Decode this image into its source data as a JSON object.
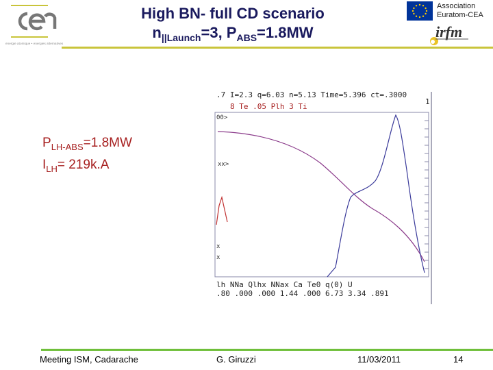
{
  "header": {
    "title_line1": "High BN- full CD scenario",
    "title_line2_main": "n",
    "title_line2_sub1": "||Launch",
    "title_line2_mid": "=3, P",
    "title_line2_sub2": "ABS",
    "title_line2_end": "=1.8MW",
    "association_line1": "Association",
    "association_line2": "Euratom-CEA",
    "logo_left": "cea",
    "logo_left_tagline": "energie atomique • energies alternatives",
    "logo_right": "irfm"
  },
  "annotation": {
    "plh_main": "P",
    "plh_sub": "LH-ABS",
    "plh_value": "=1.8MW",
    "ilh_main": "I",
    "ilh_sub": "LH",
    "ilh_value": "= 219k.A"
  },
  "plot": {
    "top_row1": ".7  I=2.3  q=6.03 n=5.13 Time=5.396 ct=.3000",
    "top_row2": "8     Te   .05 Plh  3     Ti",
    "corner_right": "1",
    "left_label1": "00>",
    "left_label2": "xx>",
    "left_label3": "x",
    "left_label4": "x",
    "bottom_row1": "lh  NNa  Qlhx  NNax  Ca    Te0  q(0)  U",
    "bottom_row2": ".80  .000  .000  1.44  .000  6.73  3.34  .891"
  },
  "colors": {
    "title": "#1a1a5e",
    "accent_red": "#a61e1e",
    "header_rule": "#c9c43a",
    "footer_rule": "#6fbf3a",
    "curve_blue": "#3a3a9a",
    "curve_purple": "#8a3a8a"
  },
  "footer": {
    "meeting": "Meeting ISM, Cadarache",
    "author": "G. Giruzzi",
    "date": "11/03/2011",
    "page": "14"
  }
}
